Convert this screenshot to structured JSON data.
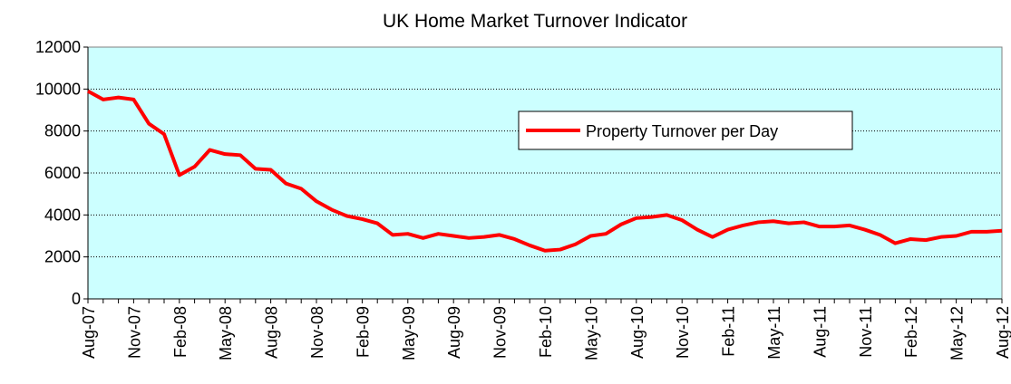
{
  "chart_data": {
    "type": "line",
    "title": "UK Home Market Turnover Indicator",
    "categories": [
      "Aug-07",
      null,
      null,
      "Nov-07",
      null,
      null,
      "Feb-08",
      null,
      null,
      "May-08",
      null,
      null,
      "Aug-08",
      null,
      null,
      "Nov-08",
      null,
      null,
      "Feb-09",
      null,
      null,
      "May-09",
      null,
      null,
      "Aug-09",
      null,
      null,
      "Nov-09",
      null,
      null,
      "Feb-10",
      null,
      null,
      "May-10",
      null,
      null,
      "Aug-10",
      null,
      null,
      "Nov-10",
      null,
      null,
      "Feb-11",
      null,
      null,
      "May-11",
      null,
      null,
      "Aug-11",
      null,
      null,
      "Nov-11",
      null,
      null,
      "Feb-12",
      null,
      null,
      "May-12",
      null,
      null,
      "Aug-12"
    ],
    "series": [
      {
        "name": "Property Turnover per Day",
        "color": "#ff0000",
        "values": [
          9900,
          9500,
          9600,
          9500,
          8350,
          7850,
          5900,
          6300,
          7100,
          6900,
          6850,
          6200,
          6150,
          5500,
          5250,
          4650,
          4250,
          3950,
          3800,
          3600,
          3050,
          3100,
          2900,
          3100,
          3000,
          2900,
          2950,
          3050,
          2850,
          2550,
          2300,
          2350,
          2600,
          3000,
          3100,
          3550,
          3850,
          3900,
          4000,
          3750,
          3300,
          2950,
          3300,
          3500,
          3650,
          3700,
          3600,
          3650,
          3450,
          3450,
          3500,
          3300,
          3050,
          2650,
          2850,
          2800,
          2950,
          3000,
          3200,
          3200,
          3250
        ]
      }
    ],
    "ylim": [
      0,
      12000
    ],
    "yticks": [
      0,
      2000,
      4000,
      6000,
      8000,
      10000,
      12000
    ],
    "grid": true,
    "legend": "center right",
    "plot_background": "#ccffff"
  }
}
